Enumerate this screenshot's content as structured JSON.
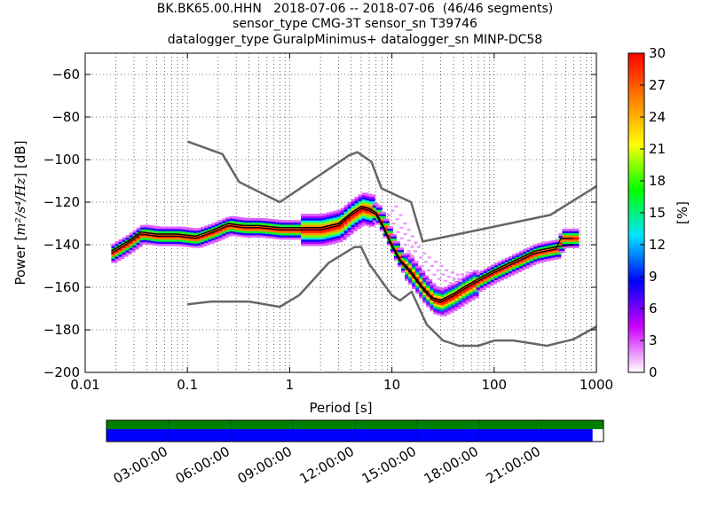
{
  "title_lines": [
    "BK.BK65.00.HHN   2018-07-06 -- 2018-07-06  (46/46 segments)",
    "sensor_type CMG-3T sensor_sn T39746",
    "datalogger_type GuralpMinimus+ datalogger_sn MINP-DC58"
  ],
  "chart_data": {
    "type": "heatmap",
    "xlabel": "Period [s]",
    "ylabel_prefix": "Power [",
    "ylabel_units": "m²/s⁴/Hz",
    "ylabel_suffix": "] [dB]",
    "xscale": "log",
    "xlim": [
      0.01,
      1000
    ],
    "ylim": [
      -200,
      -50
    ],
    "x_ticks": [
      {
        "value": 0.01,
        "label": "0.01"
      },
      {
        "value": 0.1,
        "label": "0.1"
      },
      {
        "value": 1,
        "label": "1"
      },
      {
        "value": 10,
        "label": "10"
      },
      {
        "value": 100,
        "label": "100"
      },
      {
        "value": 1000,
        "label": "1000"
      }
    ],
    "y_ticks": [
      -60,
      -80,
      -100,
      -120,
      -140,
      -160,
      -180,
      -200
    ],
    "grid": true,
    "colorbar": {
      "label": "[%]",
      "range": [
        0,
        30
      ],
      "ticks": [
        0,
        3,
        6,
        9,
        12,
        15,
        18,
        21,
        24,
        27,
        30
      ],
      "colormap_stops": [
        "#ffffff",
        "#cc00ff",
        "#0000ff",
        "#00e5ff",
        "#00ff00",
        "#ffff00",
        "#ff7f00",
        "#ff0000"
      ]
    },
    "noise_models": {
      "high": {
        "x": [
          0.1,
          0.22,
          0.32,
          0.8,
          3.8,
          4.6,
          6.3,
          7.9,
          15.4,
          20,
          354.8,
          1000
        ],
        "y": [
          -91.5,
          -97.4,
          -110.5,
          -120,
          -98,
          -96.5,
          -101,
          -113.5,
          -120,
          -138.5,
          -126,
          -112.5
        ]
      },
      "low": {
        "x": [
          0.1,
          0.17,
          0.4,
          0.8,
          1.24,
          2.4,
          4.3,
          5,
          6,
          10,
          12,
          15.6,
          21.9,
          31.6,
          45,
          70,
          101,
          154,
          328,
          600,
          1000
        ],
        "y": [
          -168,
          -166.7,
          -166.7,
          -169.2,
          -163.7,
          -148.6,
          -141.1,
          -141.1,
          -149,
          -163.8,
          -166.2,
          -162.1,
          -177.5,
          -185,
          -187.5,
          -187.5,
          -185,
          -185,
          -187.5,
          -184.4,
          -178.5
        ]
      }
    },
    "mean": {
      "x": [
        0.018,
        0.025,
        0.035,
        0.05,
        0.08,
        0.12,
        0.18,
        0.25,
        0.35,
        0.5,
        0.8,
        1.2,
        2,
        3,
        4,
        5,
        6,
        7,
        8,
        10,
        12,
        15,
        20,
        25,
        30,
        40,
        50,
        70,
        100,
        150,
        250,
        400,
        600
      ],
      "y": [
        -143,
        -139,
        -134,
        -135,
        -135,
        -136,
        -133,
        -130,
        -131,
        -131,
        -132,
        -132,
        -132,
        -130,
        -125,
        -122,
        -123,
        -125,
        -130,
        -140,
        -147,
        -152,
        -160,
        -165,
        -166,
        -163,
        -160,
        -156,
        -152,
        -148,
        -143,
        -141,
        -140
      ]
    },
    "mode": {
      "x": [
        0.018,
        0.025,
        0.035,
        0.05,
        0.08,
        0.12,
        0.18,
        0.25,
        0.35,
        0.5,
        0.8,
        1.2,
        2,
        3,
        4,
        5,
        6,
        7,
        8,
        10,
        12,
        15,
        20,
        25,
        30,
        40,
        50,
        70,
        100,
        150,
        250,
        400,
        450,
        600
      ],
      "y": [
        -144,
        -140,
        -135,
        -136,
        -136,
        -137,
        -134,
        -131,
        -132,
        -132,
        -133,
        -133,
        -133,
        -131,
        -126,
        -123,
        -124,
        -126,
        -131,
        -141,
        -148,
        -153,
        -161,
        -166,
        -167,
        -164,
        -161,
        -157,
        -153,
        -149,
        -144,
        -142,
        -137,
        -137
      ]
    },
    "scatter_outliers": {
      "x": [
        9,
        10,
        11,
        12,
        13,
        14,
        15,
        17,
        19,
        22,
        25,
        28,
        32,
        36,
        40,
        45
      ],
      "y": [
        -126,
        -130,
        -134,
        -137,
        -140,
        -143,
        -145,
        -148,
        -150,
        -152,
        -154,
        -156,
        -157,
        -158,
        -158,
        -157
      ]
    },
    "availability": {
      "hour_labels": [
        "03:00:00",
        "06:00:00",
        "09:00:00",
        "12:00:00",
        "15:00:00",
        "18:00:00",
        "21:00:00"
      ],
      "data_fraction": 0.978,
      "gap_fraction": 1.0,
      "colors": {
        "data": "#0000ff",
        "gaps": "#008000"
      }
    }
  }
}
